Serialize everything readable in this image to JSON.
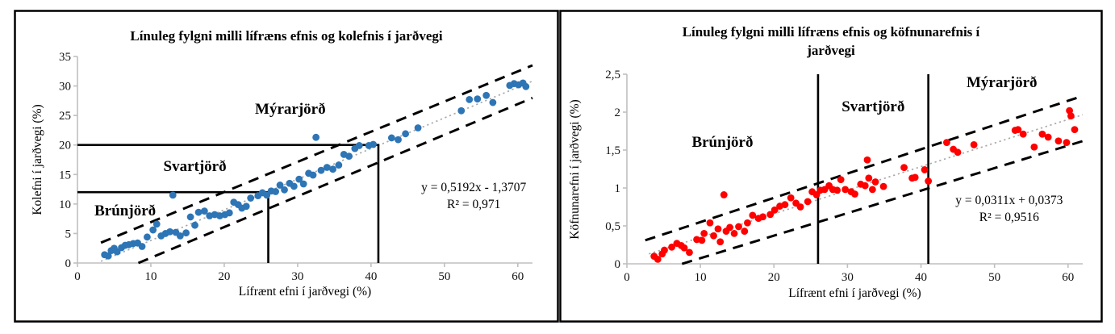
{
  "page": {
    "background": "#ffffff",
    "frame_color": "#000000",
    "axis_color": "#bfbfbf",
    "trendline_color": "#a8a8a8",
    "band_color": "#000000"
  },
  "chart_data": [
    {
      "type": "scatter",
      "title": "Línuleg fylgni milli lífræns efnis og kolefnis í jarðvegi",
      "title_lines": [
        "Línuleg fylgni milli lífræns efnis og kolefnis í jarðvegi"
      ],
      "xlabel": "Lífrænt efni í jarðvegi (%)",
      "ylabel": "Kolefni í jarðvegi (%)",
      "xlim": [
        0,
        62
      ],
      "ylim": [
        0,
        35
      ],
      "x_ticks": [
        0,
        10,
        20,
        30,
        40,
        50,
        60
      ],
      "x_tick_labels": [
        "0",
        "10",
        "20",
        "30",
        "40",
        "50",
        "60"
      ],
      "y_ticks": [
        0,
        5,
        10,
        15,
        20,
        25,
        30,
        35
      ],
      "y_tick_labels": [
        "0",
        "5",
        "10",
        "15",
        "20",
        "25",
        "30",
        "35"
      ],
      "point_color": "#2E75B6",
      "points": [
        [
          3.7,
          1.4
        ],
        [
          4.2,
          1.2
        ],
        [
          4.6,
          2.1
        ],
        [
          5,
          2.5
        ],
        [
          5.4,
          1.9
        ],
        [
          6,
          2.6
        ],
        [
          6.5,
          3
        ],
        [
          7,
          3.1
        ],
        [
          7.6,
          3.3
        ],
        [
          8.2,
          3.4
        ],
        [
          8.8,
          2.8
        ],
        [
          9.5,
          4.4
        ],
        [
          10.3,
          5.6
        ],
        [
          10.8,
          6.6
        ],
        [
          11.4,
          4.6
        ],
        [
          12,
          5
        ],
        [
          12.6,
          5.3
        ],
        [
          13,
          11.5
        ],
        [
          13.4,
          5.2
        ],
        [
          14,
          4.6
        ],
        [
          14.8,
          5.1
        ],
        [
          15.4,
          7.8
        ],
        [
          16,
          6.4
        ],
        [
          16.5,
          8.6
        ],
        [
          17.3,
          8.8
        ],
        [
          18,
          8
        ],
        [
          18.7,
          8.2
        ],
        [
          19.4,
          8
        ],
        [
          20.1,
          8.2
        ],
        [
          20.7,
          8.5
        ],
        [
          21.3,
          10.3
        ],
        [
          21.9,
          9.9
        ],
        [
          22.4,
          9.3
        ],
        [
          23,
          9.6
        ],
        [
          23.6,
          11
        ],
        [
          24.6,
          11.4
        ],
        [
          25.2,
          11.9
        ],
        [
          25.8,
          11.5
        ],
        [
          26.4,
          12.2
        ],
        [
          27,
          12.1
        ],
        [
          27.6,
          13.2
        ],
        [
          28.2,
          12.4
        ],
        [
          28.9,
          13.5
        ],
        [
          29.5,
          13
        ],
        [
          30.2,
          14.2
        ],
        [
          30.8,
          13.4
        ],
        [
          31.5,
          15.2
        ],
        [
          32.1,
          14.9
        ],
        [
          32.5,
          21.3
        ],
        [
          33.2,
          15.7
        ],
        [
          34,
          16.2
        ],
        [
          34.8,
          15.9
        ],
        [
          35.6,
          16.6
        ],
        [
          36.3,
          18.4
        ],
        [
          37,
          18.1
        ],
        [
          37.8,
          19.4
        ],
        [
          38.4,
          19.9
        ],
        [
          39.7,
          19.9
        ],
        [
          40.3,
          20.1
        ],
        [
          42.8,
          21.2
        ],
        [
          43.7,
          20.9
        ],
        [
          44.7,
          21.9
        ],
        [
          46.4,
          22.9
        ],
        [
          52.3,
          25.8
        ],
        [
          53.4,
          27.7
        ],
        [
          54.5,
          27.8
        ],
        [
          55.7,
          28.4
        ],
        [
          56.6,
          27.2
        ],
        [
          58.9,
          30.1
        ],
        [
          59.5,
          30.4
        ],
        [
          60.1,
          30.2
        ],
        [
          60.7,
          30.5
        ],
        [
          61.1,
          29.9
        ]
      ],
      "trendline": {
        "slope": 0.5192,
        "intercept": -1.3707,
        "x_start": 3.2,
        "x_end": 62
      },
      "bands": [
        {
          "slope": 0.511,
          "intercept": 1.81,
          "x_start": 3.2,
          "x_end": 62
        },
        {
          "slope": 0.521,
          "intercept": -4.33,
          "x_start": 8.3,
          "x_end": 62
        }
      ],
      "zone_lines": [
        [
          [
            0,
            20
          ],
          [
            41,
            20
          ],
          [
            41,
            0
          ]
        ],
        [
          [
            0,
            12
          ],
          [
            26,
            12
          ],
          [
            26,
            0
          ]
        ]
      ],
      "zone_labels": [
        {
          "text": "Mýrarjörð",
          "x": 29,
          "y": 26
        },
        {
          "text": "Svartjörð",
          "x": 16,
          "y": 16.3
        },
        {
          "text": "Brúnjörð",
          "x": 6.5,
          "y": 8.8
        }
      ],
      "equation": {
        "line1": "y = 0,5192x - 1,3707",
        "line2": "R² = 0,971",
        "x": 54,
        "y": 11.4
      }
    },
    {
      "type": "scatter",
      "title": "Línuleg fylgni milli lífræns efnis og köfnunarefnis í jarðvegi",
      "title_lines": [
        "Línuleg fylgni milli lífræns efnis og köfnunarefnis í",
        "jarðvegi"
      ],
      "xlabel": "Lífrænt efni í jarðvegi (%)",
      "ylabel": "Köfnunarefni í jarðvegi (%)",
      "xlim": [
        0,
        62
      ],
      "ylim": [
        0,
        2.5
      ],
      "x_ticks": [
        0,
        10,
        20,
        30,
        40,
        50,
        60
      ],
      "x_tick_labels": [
        "0",
        "10",
        "20",
        "30",
        "40",
        "50",
        "60"
      ],
      "y_ticks": [
        0,
        0.5,
        1,
        1.5,
        2,
        2.5
      ],
      "y_tick_labels": [
        "0",
        "0,5",
        "1",
        "1,5",
        "2",
        "2,5"
      ],
      "point_color": "#FF0000",
      "points": [
        [
          3.7,
          0.1
        ],
        [
          4.2,
          0.06
        ],
        [
          4.8,
          0.13
        ],
        [
          5.1,
          0.18
        ],
        [
          6.1,
          0.22
        ],
        [
          6.8,
          0.27
        ],
        [
          7.4,
          0.24
        ],
        [
          7.8,
          0.21
        ],
        [
          8.5,
          0.15
        ],
        [
          9.5,
          0.32
        ],
        [
          10.2,
          0.31
        ],
        [
          10.5,
          0.4
        ],
        [
          11.3,
          0.54
        ],
        [
          11.8,
          0.37
        ],
        [
          12.4,
          0.46
        ],
        [
          12.7,
          0.29
        ],
        [
          13.2,
          0.91
        ],
        [
          13.5,
          0.43
        ],
        [
          14,
          0.48
        ],
        [
          14.6,
          0.4
        ],
        [
          15.2,
          0.49
        ],
        [
          16,
          0.43
        ],
        [
          16.4,
          0.54
        ],
        [
          17.1,
          0.64
        ],
        [
          17.9,
          0.6
        ],
        [
          18.5,
          0.62
        ],
        [
          19.5,
          0.65
        ],
        [
          20.1,
          0.71
        ],
        [
          20.8,
          0.76
        ],
        [
          21.5,
          0.78
        ],
        [
          22.3,
          0.87
        ],
        [
          23,
          0.8
        ],
        [
          23.6,
          0.75
        ],
        [
          24.6,
          0.82
        ],
        [
          25.2,
          0.95
        ],
        [
          25.8,
          0.91
        ],
        [
          26.3,
          0.97
        ],
        [
          26.9,
          0.98
        ],
        [
          27.5,
          1.03
        ],
        [
          28,
          0.98
        ],
        [
          28.6,
          0.97
        ],
        [
          29.1,
          1.11
        ],
        [
          29.7,
          0.98
        ],
        [
          30.5,
          0.95
        ],
        [
          31,
          0.92
        ],
        [
          31.8,
          1.05
        ],
        [
          32.4,
          1.03
        ],
        [
          32.7,
          1.37
        ],
        [
          32.9,
          1.13
        ],
        [
          33.4,
          0.98
        ],
        [
          33.8,
          1.08
        ],
        [
          34.9,
          1.02
        ],
        [
          37.7,
          1.27
        ],
        [
          38.8,
          1.13
        ],
        [
          39.2,
          1.14
        ],
        [
          40.5,
          1.24
        ],
        [
          41,
          1.09
        ],
        [
          43.5,
          1.6
        ],
        [
          44.4,
          1.51
        ],
        [
          45,
          1.47
        ],
        [
          47.2,
          1.57
        ],
        [
          52.8,
          1.76
        ],
        [
          53.2,
          1.77
        ],
        [
          53.9,
          1.71
        ],
        [
          55.4,
          1.54
        ],
        [
          56.5,
          1.71
        ],
        [
          57.3,
          1.67
        ],
        [
          58.7,
          1.62
        ],
        [
          59.8,
          1.6
        ],
        [
          60.2,
          2.02
        ],
        [
          60.4,
          1.95
        ],
        [
          60.9,
          1.77
        ]
      ],
      "trendline": {
        "slope": 0.0311,
        "intercept": 0.0373,
        "x_start": 3,
        "x_end": 62
      },
      "bands": [
        {
          "slope": 0.032,
          "intercept": 0.23,
          "x_start": 2.5,
          "x_end": 62
        },
        {
          "slope": 0.0297,
          "intercept": -0.223,
          "x_start": 7.5,
          "x_end": 62
        }
      ],
      "zone_lines": [
        [
          [
            26,
            0
          ],
          [
            26,
            2.5
          ]
        ],
        [
          [
            41,
            0
          ],
          [
            41,
            2.5
          ]
        ]
      ],
      "zone_labels": [
        {
          "text": "Mýrarjörð",
          "x": 51,
          "y": 2.38
        },
        {
          "text": "Svartjörð",
          "x": 33.5,
          "y": 2.06
        },
        {
          "text": "Brúnjörð",
          "x": 13,
          "y": 1.6
        }
      ],
      "equation": {
        "line1": "y = 0,0311x + 0,0373",
        "line2": "R² = 0,9516",
        "x": 52,
        "y": 0.72
      }
    }
  ]
}
